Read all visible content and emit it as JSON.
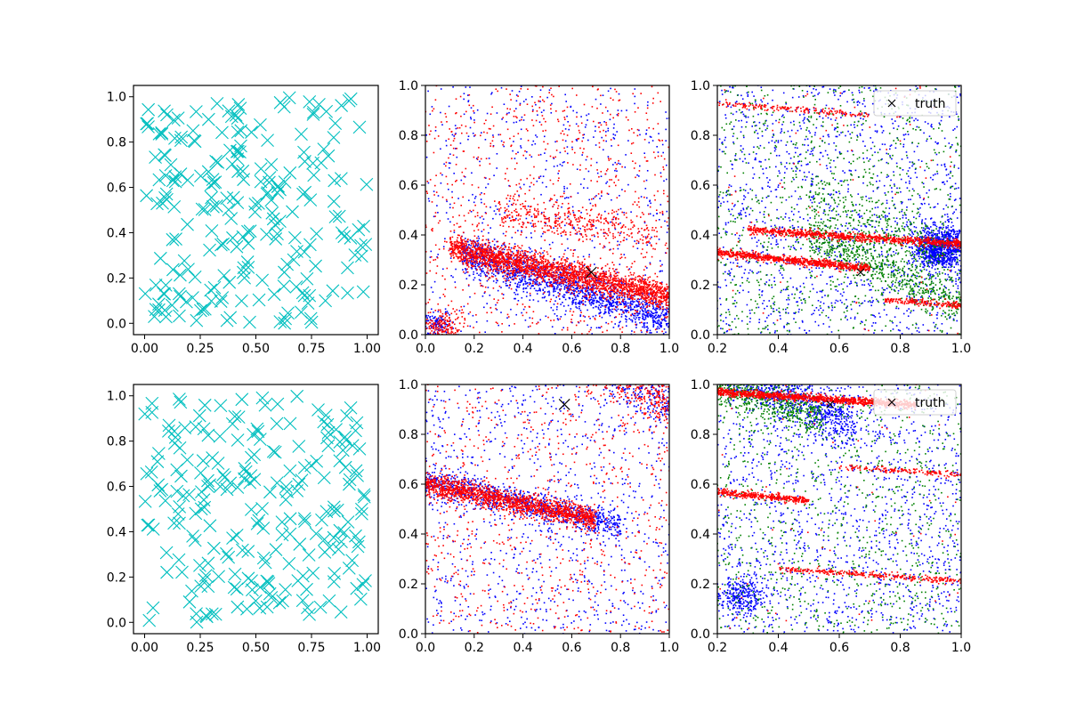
{
  "chart_data": [
    {
      "type": "scatter",
      "position": "top-left",
      "xlim": [
        -0.05,
        1.05
      ],
      "ylim": [
        -0.05,
        1.05
      ],
      "xticks": [
        "0.00",
        "0.25",
        "0.50",
        "0.75",
        "1.00"
      ],
      "yticks": [
        "0.0",
        "0.2",
        "0.4",
        "0.6",
        "0.8",
        "1.0"
      ],
      "marker": "x",
      "color": "#00bfbf",
      "series": [
        {
          "seed": 11,
          "count": 230,
          "distribution": "uniform"
        }
      ]
    },
    {
      "type": "scatter",
      "position": "top-middle",
      "xlim": [
        0,
        1
      ],
      "ylim": [
        0,
        1
      ],
      "xticks": [
        "0.0",
        "0.2",
        "0.4",
        "0.6",
        "0.8",
        "1.0"
      ],
      "yticks": [
        "0.0",
        "0.2",
        "0.4",
        "0.6",
        "0.8",
        "1.0"
      ],
      "series": [
        {
          "color": "#0000ff",
          "seed": 21,
          "background": 650,
          "bands": [
            {
              "x0": 0.15,
              "x1": 1.0,
              "y0": 0.33,
              "slope": -0.31,
              "spread": 0.04,
              "n": 1500
            }
          ],
          "blobs": [
            {
              "x": 0.05,
              "y": 0.04,
              "r": 0.05,
              "n": 120
            }
          ]
        },
        {
          "color": "#ff0000",
          "seed": 22,
          "background": 800,
          "bands": [
            {
              "x0": 0.1,
              "x1": 1.0,
              "y0": 0.35,
              "slope": -0.22,
              "spread": 0.028,
              "n": 2300
            },
            {
              "x0": 0.3,
              "x1": 0.95,
              "y0": 0.5,
              "slope": -0.16,
              "spread": 0.04,
              "n": 350
            }
          ],
          "blobs": [
            {
              "x": 0.08,
              "y": 0.02,
              "r": 0.07,
              "n": 200
            }
          ]
        }
      ],
      "truth": {
        "x": 0.68,
        "y": 0.25,
        "size": "large"
      }
    },
    {
      "type": "scatter",
      "position": "top-right",
      "xlim": [
        0.2,
        1.0
      ],
      "ylim": [
        0,
        1
      ],
      "xticks": [
        "0.2",
        "0.4",
        "0.6",
        "0.8",
        "1.0"
      ],
      "yticks": [
        "0.0",
        "0.2",
        "0.4",
        "0.6",
        "0.8",
        "1.0"
      ],
      "series": [
        {
          "color": "#0000ff",
          "seed": 31,
          "background": 1400,
          "bands": [],
          "blobs": [
            {
              "x": 0.93,
              "y": 0.35,
              "r": 0.07,
              "n": 900
            }
          ]
        },
        {
          "color": "#008000",
          "seed": 32,
          "background": 900,
          "bands": [
            {
              "x0": 0.5,
              "x1": 1.0,
              "y0": 0.4,
              "slope": -0.55,
              "spread": 0.04,
              "n": 600
            },
            {
              "x0": 0.5,
              "x1": 0.95,
              "y0": 0.55,
              "slope": -0.5,
              "spread": 0.05,
              "n": 300
            }
          ],
          "blobs": []
        },
        {
          "color": "#ff0000",
          "seed": 33,
          "background": 80,
          "bands": [
            {
              "x0": 0.3,
              "x1": 1.0,
              "y0": 0.42,
              "slope": -0.08,
              "spread": 0.008,
              "n": 900
            },
            {
              "x0": 0.2,
              "x1": 0.7,
              "y0": 0.33,
              "slope": -0.13,
              "spread": 0.008,
              "n": 800
            },
            {
              "x0": 0.75,
              "x1": 1.0,
              "y0": 0.14,
              "slope": -0.09,
              "spread": 0.007,
              "n": 180
            },
            {
              "x0": 0.2,
              "x1": 0.7,
              "y0": 0.93,
              "slope": -0.1,
              "spread": 0.006,
              "n": 180
            }
          ],
          "blobs": []
        }
      ],
      "truth": {
        "x": 0.67,
        "y": 0.25,
        "size": "small"
      },
      "legend": {
        "placement": "upper-right",
        "label": "truth"
      }
    },
    {
      "type": "scatter",
      "position": "bottom-left",
      "xlim": [
        -0.05,
        1.05
      ],
      "ylim": [
        -0.05,
        1.05
      ],
      "xticks": [
        "0.00",
        "0.25",
        "0.50",
        "0.75",
        "1.00"
      ],
      "yticks": [
        "0.0",
        "0.2",
        "0.4",
        "0.6",
        "0.8",
        "1.0"
      ],
      "marker": "x",
      "color": "#00bfbf",
      "series": [
        {
          "seed": 41,
          "count": 230,
          "distribution": "uniform"
        }
      ]
    },
    {
      "type": "scatter",
      "position": "bottom-middle",
      "xlim": [
        0,
        1
      ],
      "ylim": [
        0,
        1
      ],
      "xticks": [
        "0.0",
        "0.2",
        "0.4",
        "0.6",
        "0.8",
        "1.0"
      ],
      "yticks": [
        "0.0",
        "0.2",
        "0.4",
        "0.6",
        "0.8",
        "1.0"
      ],
      "series": [
        {
          "color": "#0000ff",
          "seed": 51,
          "background": 900,
          "bands": [
            {
              "x0": 0.0,
              "x1": 0.8,
              "y0": 0.61,
              "slope": -0.22,
              "spread": 0.03,
              "n": 900
            },
            {
              "x0": 0.45,
              "x1": 1.0,
              "y0": 1.25,
              "slope": -0.6,
              "spread": 0.06,
              "n": 500
            }
          ],
          "blobs": []
        },
        {
          "color": "#ff0000",
          "seed": 52,
          "background": 700,
          "bands": [
            {
              "x0": 0.0,
              "x1": 0.7,
              "y0": 0.6,
              "slope": -0.2,
              "spread": 0.022,
              "n": 1500
            },
            {
              "x0": 0.45,
              "x1": 1.0,
              "y0": 1.25,
              "slope": -0.6,
              "spread": 0.06,
              "n": 700
            }
          ],
          "blobs": []
        }
      ],
      "truth": {
        "x": 0.57,
        "y": 0.92,
        "size": "large"
      }
    },
    {
      "type": "scatter",
      "position": "bottom-right",
      "xlim": [
        0.2,
        1.0
      ],
      "ylim": [
        0,
        1
      ],
      "xticks": [
        "0.2",
        "0.4",
        "0.6",
        "0.8",
        "1.0"
      ],
      "yticks": [
        "0.0",
        "0.2",
        "0.4",
        "0.6",
        "0.8",
        "1.0"
      ],
      "series": [
        {
          "color": "#0000ff",
          "seed": 61,
          "background": 1400,
          "bands": [
            {
              "x0": 0.2,
              "x1": 0.65,
              "y0": 1.1,
              "slope": -0.6,
              "spread": 0.05,
              "n": 900
            }
          ],
          "blobs": [
            {
              "x": 0.28,
              "y": 0.15,
              "r": 0.06,
              "n": 250
            }
          ]
        },
        {
          "color": "#008000",
          "seed": 62,
          "background": 900,
          "bands": [
            {
              "x0": 0.2,
              "x1": 0.55,
              "y0": 1.0,
              "slope": -0.4,
              "spread": 0.04,
              "n": 500
            }
          ],
          "blobs": []
        },
        {
          "color": "#ff0000",
          "seed": 63,
          "background": 60,
          "bands": [
            {
              "x0": 0.2,
              "x1": 0.85,
              "y0": 0.97,
              "slope": -0.08,
              "spread": 0.008,
              "n": 1100
            },
            {
              "x0": 0.2,
              "x1": 0.5,
              "y0": 0.57,
              "slope": -0.12,
              "spread": 0.007,
              "n": 350
            },
            {
              "x0": 0.6,
              "x1": 1.0,
              "y0": 0.67,
              "slope": -0.08,
              "spread": 0.006,
              "n": 150
            },
            {
              "x0": 0.4,
              "x1": 1.0,
              "y0": 0.26,
              "slope": -0.08,
              "spread": 0.006,
              "n": 300
            }
          ],
          "blobs": []
        }
      ],
      "truth": {
        "x": 0.57,
        "y": 0.92,
        "size": "small"
      },
      "legend": {
        "placement": "upper-right",
        "label": "truth"
      }
    }
  ]
}
